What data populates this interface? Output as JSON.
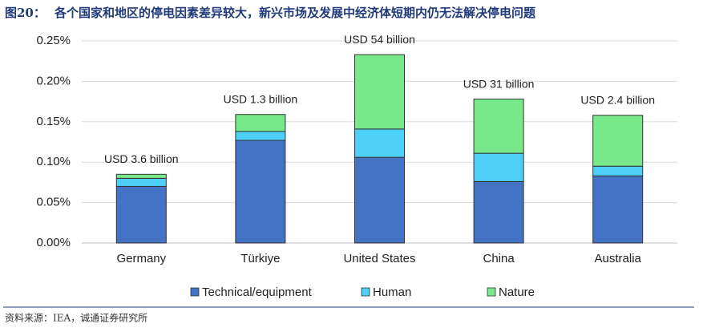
{
  "chart_data": {
    "type": "stacked_bar",
    "figure_label": "图20：",
    "title": "各个国家和地区的停电因素差异较大，新兴市场及发展中经济体短期内仍无法解决停电问题",
    "source": "资料来源：IEA，诚通证券研究所",
    "categories": [
      "Germany",
      "Türkiye",
      "United States",
      "China",
      "Australia"
    ],
    "annotations": [
      "USD 3.6 billion",
      "USD 1.3 billion",
      "USD 54 billion",
      "USD 31 billion",
      "USD 2.4 billion"
    ],
    "series": [
      {
        "name": "Technical/equipment",
        "color": "#4472c4",
        "values": [
          0.07,
          0.127,
          0.106,
          0.076,
          0.083
        ]
      },
      {
        "name": "Human",
        "color": "#4dd0f7",
        "values": [
          0.01,
          0.011,
          0.035,
          0.035,
          0.012
        ]
      },
      {
        "name": "Nature",
        "color": "#78e98b",
        "values": [
          0.005,
          0.021,
          0.092,
          0.067,
          0.063
        ]
      }
    ],
    "ylim": [
      0,
      0.25
    ],
    "yticks": [
      {
        "value": 0,
        "label": "0.00%"
      },
      {
        "value": 0.05,
        "label": "0.05%"
      },
      {
        "value": 0.1,
        "label": "0.10%"
      },
      {
        "value": 0.15,
        "label": "0.15%"
      },
      {
        "value": 0.2,
        "label": "0.20%"
      },
      {
        "value": 0.25,
        "label": "0.25%"
      }
    ],
    "grid": true,
    "legend": "bottom"
  }
}
